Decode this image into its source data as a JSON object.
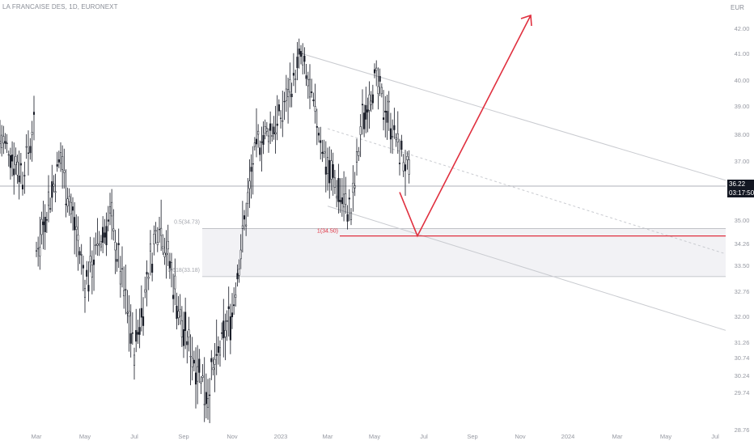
{
  "header": {
    "symbol": "LA FRANCAISE DES, 1D, EURONEXT",
    "currency": "EUR"
  },
  "price_badge": {
    "price": "36.22",
    "countdown": "03:17:50"
  },
  "colors": {
    "candle": "#131722",
    "price_line": "#9598a1",
    "channel": "#c9cbd0",
    "target_arrow": "#e0303f",
    "target_line": "#e0303f",
    "zone_fill": "#f2f2f5",
    "axis_text": "#9598a1"
  },
  "chart_data": {
    "type": "candlestick",
    "title": "LA FRANCAISE DES, 1D, EURONEXT",
    "y_axis": {
      "side": "right",
      "ticks": [
        "42.00",
        "41.00",
        "40.00",
        "39.00",
        "38.00",
        "37.00",
        "36.22",
        "35.00",
        "34.26",
        "33.50",
        "32.76",
        "32.00",
        "31.26",
        "30.74",
        "30.24",
        "29.74",
        "28.76"
      ],
      "ylim": [
        28.76,
        42.5
      ]
    },
    "x_axis": {
      "ticks": [
        "Mar",
        "May",
        "Jul",
        "Sep",
        "Nov",
        "2023",
        "Mar",
        "May",
        "Jul",
        "Sep",
        "Nov",
        "2024",
        "Mar",
        "May",
        "Jul"
      ]
    },
    "last_price": 36.22,
    "price_path": [
      {
        "t": "Jan 2022",
        "price": 37.9
      },
      {
        "t": "Feb 2022",
        "price": 36.6
      },
      {
        "t": "Feb 2022",
        "price": 38.2
      },
      {
        "t": "Mar 2022",
        "price": 34.0
      },
      {
        "t": "Apr 2022",
        "price": 37.2
      },
      {
        "t": "May 2022",
        "price": 33.0
      },
      {
        "t": "Jun 2022",
        "price": 35.2
      },
      {
        "t": "Jul 2022",
        "price": 31.0
      },
      {
        "t": "Aug 2022",
        "price": 35.1
      },
      {
        "t": "Sep 2022",
        "price": 31.5
      },
      {
        "t": "Oct 2022",
        "price": 29.8
      },
      {
        "t": "Nov 2022",
        "price": 32.2
      },
      {
        "t": "Dec 2022",
        "price": 37.6
      },
      {
        "t": "Jan 2023",
        "price": 38.6
      },
      {
        "t": "Feb 2023",
        "price": 40.9
      },
      {
        "t": "Mar 2023",
        "price": 36.8
      },
      {
        "t": "Apr 2023",
        "price": 35.2
      },
      {
        "t": "Apr 2023",
        "price": 38.5
      },
      {
        "t": "May 2023",
        "price": 40.0
      },
      {
        "t": "Jun 2023",
        "price": 37.5
      },
      {
        "t": "Jun 2023",
        "price": 36.2
      }
    ],
    "fib_zone": {
      "levels": [
        {
          "label": "0.5(34.73)",
          "price": 34.73
        },
        {
          "label": "0.618(33.18)",
          "price": 33.18
        }
      ]
    },
    "support_line": {
      "label": "1(34.50)",
      "price": 34.5
    },
    "channel": {
      "upper": [
        {
          "t": "Feb 2023",
          "price": 41.0
        },
        {
          "t": "Jul 2024",
          "price": 36.4
        }
      ],
      "middle": [
        {
          "t": "Mar 2023",
          "price": 38.2
        },
        {
          "t": "Jul 2024",
          "price": 33.9
        }
      ],
      "lower": [
        {
          "t": "Mar 2023",
          "price": 35.5
        },
        {
          "t": "Jul 2024",
          "price": 31.6
        }
      ]
    },
    "projection": [
      {
        "t": "Jun 2023",
        "price": 36.0
      },
      {
        "t": "Jul 2023",
        "price": 34.5
      },
      {
        "t": "Dec 2023",
        "price": 42.5
      }
    ]
  }
}
